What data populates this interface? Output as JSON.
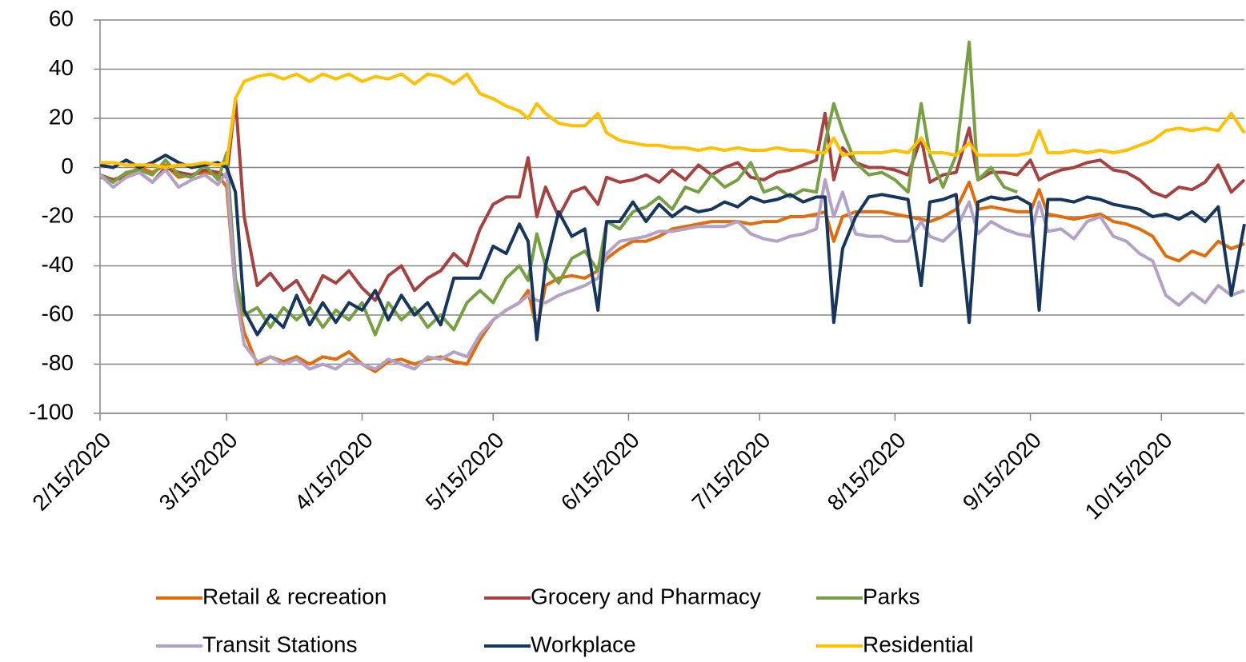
{
  "chart_data": {
    "type": "line",
    "x": [
      "2/15/2020",
      "2/18/2020",
      "2/21/2020",
      "2/24/2020",
      "2/27/2020",
      "3/1/2020",
      "3/4/2020",
      "3/7/2020",
      "3/10/2020",
      "3/13/2020",
      "3/15/2020",
      "3/17/2020",
      "3/19/2020",
      "3/22/2020",
      "3/25/2020",
      "3/28/2020",
      "3/31/2020",
      "4/3/2020",
      "4/6/2020",
      "4/9/2020",
      "4/12/2020",
      "4/15/2020",
      "4/18/2020",
      "4/21/2020",
      "4/24/2020",
      "4/27/2020",
      "4/30/2020",
      "5/3/2020",
      "5/6/2020",
      "5/9/2020",
      "5/12/2020",
      "5/15/2020",
      "5/18/2020",
      "5/21/2020",
      "5/23/2020",
      "5/25/2020",
      "5/27/2020",
      "5/30/2020",
      "6/2/2020",
      "6/5/2020",
      "6/8/2020",
      "6/10/2020",
      "6/13/2020",
      "6/16/2020",
      "6/19/2020",
      "6/22/2020",
      "6/25/2020",
      "6/28/2020",
      "7/1/2020",
      "7/4/2020",
      "7/7/2020",
      "7/10/2020",
      "7/13/2020",
      "7/16/2020",
      "7/19/2020",
      "7/22/2020",
      "7/25/2020",
      "7/28/2020",
      "7/30/2020",
      "8/1/2020",
      "8/3/2020",
      "8/6/2020",
      "8/9/2020",
      "8/12/2020",
      "8/15/2020",
      "8/18/2020",
      "8/21/2020",
      "8/23/2020",
      "8/26/2020",
      "8/29/2020",
      "9/1/2020",
      "9/3/2020",
      "9/6/2020",
      "9/9/2020",
      "9/12/2020",
      "9/15/2020",
      "9/17/2020",
      "9/19/2020",
      "9/22/2020",
      "9/25/2020",
      "9/28/2020",
      "10/1/2020",
      "10/4/2020",
      "10/7/2020",
      "10/10/2020",
      "10/13/2020",
      "10/16/2020",
      "10/19/2020",
      "10/22/2020",
      "10/25/2020",
      "10/28/2020",
      "10/31/2020",
      "11/3/2020"
    ],
    "series": [
      {
        "name": "Retail & recreation",
        "color": "#e36c0a",
        "values": [
          -4,
          -5,
          -3,
          0,
          -2,
          1,
          -4,
          -3,
          -2,
          -3,
          -8,
          -50,
          -67,
          -80,
          -77,
          -79,
          -77,
          -80,
          -77,
          -78,
          -75,
          -80,
          -83,
          -79,
          -78,
          -80,
          -78,
          -77,
          -79,
          -80,
          -70,
          -62,
          -58,
          -55,
          -50,
          -66,
          -48,
          -45,
          -44,
          -45,
          -42,
          -37,
          -33,
          -30,
          -30,
          -28,
          -25,
          -24,
          -23,
          -22,
          -22,
          -22,
          -23,
          -22,
          -22,
          -20,
          -20,
          -19,
          -18,
          -30,
          -20,
          -18,
          -18,
          -18,
          -19,
          -20,
          -21,
          -22,
          -20,
          -17,
          -6,
          -17,
          -16,
          -17,
          -18,
          -18,
          -9,
          -19,
          -20,
          -21,
          -20,
          -19,
          -22,
          -23,
          -25,
          -28,
          -36,
          -38,
          -34,
          -36,
          -30,
          -33,
          -31
        ]
      },
      {
        "name": "Grocery and Pharmacy",
        "color": "#a6423f",
        "values": [
          -3,
          -5,
          -4,
          -2,
          -6,
          0,
          -2,
          -3,
          -1,
          -2,
          -4,
          28,
          -20,
          -48,
          -43,
          -50,
          -46,
          -55,
          -44,
          -47,
          -42,
          -49,
          -54,
          -44,
          -40,
          -50,
          -45,
          -42,
          -35,
          -40,
          -25,
          -15,
          -12,
          -12,
          4,
          -20,
          -8,
          -20,
          -10,
          -8,
          -15,
          -4,
          -6,
          -5,
          -3,
          -6,
          -1,
          -5,
          1,
          -3,
          0,
          2,
          -4,
          -5,
          -2,
          -1,
          1,
          3,
          22,
          -5,
          8,
          2,
          0,
          0,
          -1,
          -3,
          12,
          -6,
          -3,
          -2,
          16,
          -5,
          -2,
          -2,
          -3,
          3,
          -5,
          -3,
          -1,
          0,
          2,
          3,
          -1,
          -2,
          -5,
          -10,
          -12,
          -8,
          -9,
          -6,
          1,
          -10,
          -5
        ]
      },
      {
        "name": "Parks",
        "color": "#77a043",
        "values": [
          -3,
          -6,
          -2,
          -1,
          -3,
          3,
          -3,
          -4,
          1,
          -5,
          6,
          -45,
          -60,
          -57,
          -65,
          -57,
          -62,
          -57,
          -65,
          -58,
          -62,
          -55,
          -68,
          -55,
          -62,
          -57,
          -65,
          -60,
          -66,
          -55,
          -50,
          -55,
          -45,
          -40,
          -46,
          -27,
          -40,
          -47,
          -37,
          -34,
          -42,
          -22,
          -25,
          -18,
          -16,
          -12,
          -17,
          -8,
          -10,
          -3,
          -8,
          -5,
          2,
          -10,
          -8,
          -12,
          -9,
          -10,
          10,
          26,
          15,
          2,
          -3,
          -2,
          -5,
          -10,
          26,
          5,
          -8,
          5,
          51,
          -5,
          0,
          -8,
          -10,
          null,
          null,
          null,
          null,
          null,
          null,
          null,
          null,
          null,
          null,
          null,
          null,
          null,
          null,
          null,
          null,
          null,
          null
        ]
      },
      {
        "name": "Transit Stations",
        "color": "#b3a2c7",
        "values": [
          -3,
          -8,
          -4,
          -2,
          -6,
          -1,
          -8,
          -5,
          -3,
          -7,
          -2,
          -50,
          -72,
          -79,
          -77,
          -80,
          -78,
          -82,
          -80,
          -82,
          -78,
          -80,
          -82,
          -78,
          -80,
          -82,
          -77,
          -78,
          -75,
          -77,
          -68,
          -62,
          -58,
          -55,
          -52,
          -54,
          -55,
          -52,
          -50,
          -48,
          -45,
          -35,
          -30,
          -29,
          -28,
          -26,
          -26,
          -25,
          -24,
          -24,
          -24,
          -22,
          -27,
          -29,
          -30,
          -28,
          -27,
          -25,
          -5,
          -20,
          -10,
          -27,
          -28,
          -28,
          -30,
          -30,
          -22,
          -28,
          -30,
          -25,
          -14,
          -27,
          -22,
          -25,
          -27,
          -28,
          -14,
          -26,
          -25,
          -29,
          -22,
          -20,
          -28,
          -30,
          -35,
          -38,
          -52,
          -56,
          -51,
          -55,
          -48,
          -52,
          -50
        ]
      },
      {
        "name": "Workplace",
        "color": "#17365d",
        "values": [
          1,
          0,
          3,
          0,
          2,
          5,
          2,
          0,
          1,
          2,
          0,
          -10,
          -58,
          -68,
          -60,
          -65,
          -52,
          -64,
          -55,
          -63,
          -55,
          -58,
          -50,
          -62,
          -52,
          -60,
          -55,
          -64,
          -45,
          -45,
          -45,
          -32,
          -35,
          -23,
          -30,
          -70,
          -40,
          -18,
          -28,
          -25,
          -58,
          -22,
          -22,
          -14,
          -22,
          -15,
          -20,
          -16,
          -18,
          -17,
          -14,
          -16,
          -12,
          -14,
          -13,
          -11,
          -14,
          -12,
          -12,
          -63,
          -33,
          -20,
          -12,
          -11,
          -12,
          -13,
          -48,
          -14,
          -13,
          -11,
          -63,
          -14,
          -12,
          -13,
          -12,
          -15,
          -58,
          -13,
          -13,
          -14,
          -12,
          -13,
          -15,
          -16,
          -17,
          -20,
          -19,
          -21,
          -18,
          -22,
          -16,
          -52,
          -23
        ]
      },
      {
        "name": "Residential",
        "color": "#ffc000",
        "values": [
          2,
          2,
          1,
          1,
          1,
          0,
          1,
          1,
          2,
          1,
          2,
          28,
          35,
          37,
          38,
          36,
          38,
          35,
          38,
          36,
          38,
          35,
          37,
          36,
          38,
          34,
          38,
          37,
          34,
          38,
          30,
          28,
          25,
          23,
          20,
          26,
          22,
          18,
          17,
          17,
          22,
          14,
          11,
          10,
          9,
          9,
          8,
          8,
          7,
          8,
          7,
          8,
          7,
          7,
          8,
          7,
          7,
          6,
          6,
          12,
          5,
          6,
          6,
          6,
          7,
          6,
          12,
          6,
          6,
          5,
          10,
          5,
          5,
          5,
          5,
          6,
          15,
          6,
          6,
          7,
          6,
          7,
          6,
          7,
          9,
          11,
          15,
          16,
          15,
          16,
          15,
          22,
          14
        ]
      }
    ],
    "xlim": [
      "2/15/2020",
      "11/3/2020"
    ],
    "xticks": [
      "2/15/2020",
      "3/15/2020",
      "4/15/2020",
      "5/15/2020",
      "6/15/2020",
      "7/15/2020",
      "8/15/2020",
      "9/15/2020",
      "10/15/2020"
    ],
    "ylim": [
      -100,
      60
    ],
    "yticks": [
      -100,
      -80,
      -60,
      -40,
      -20,
      0,
      20,
      40,
      60
    ],
    "grid": true,
    "legend": "bottom"
  }
}
